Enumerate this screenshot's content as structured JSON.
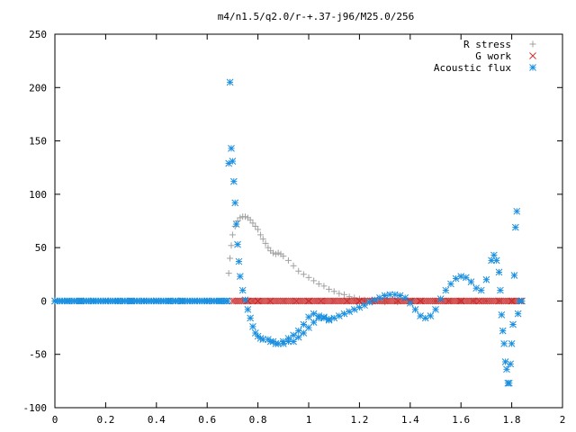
{
  "chart_data": {
    "type": "scatter",
    "title": "m4/n1.5/q2.0/r-+.37-j96/M25.0/256",
    "xlabel": "",
    "ylabel": "",
    "xlim": [
      0,
      2
    ],
    "ylim": [
      -100,
      250
    ],
    "xticks": [
      "0",
      "0.2",
      "0.4",
      "0.6",
      "0.8",
      "1",
      "1.2",
      "1.4",
      "1.6",
      "1.8",
      "2"
    ],
    "yticks": [
      "250",
      "200",
      "150",
      "100",
      "50",
      "0",
      "-50",
      "-100"
    ],
    "legend_position": "top-right",
    "grid": false,
    "series": [
      {
        "name": "R stress",
        "marker": "plus",
        "color": "#a0a0a0",
        "points": [
          [
            0.0,
            0
          ],
          [
            0.1,
            0
          ],
          [
            0.2,
            0
          ],
          [
            0.3,
            0
          ],
          [
            0.4,
            0
          ],
          [
            0.5,
            0
          ],
          [
            0.6,
            0
          ],
          [
            0.68,
            0
          ],
          [
            0.685,
            26
          ],
          [
            0.69,
            40
          ],
          [
            0.695,
            52
          ],
          [
            0.7,
            62
          ],
          [
            0.71,
            70
          ],
          [
            0.72,
            75
          ],
          [
            0.73,
            78
          ],
          [
            0.74,
            79
          ],
          [
            0.75,
            79
          ],
          [
            0.76,
            78
          ],
          [
            0.77,
            76
          ],
          [
            0.78,
            73
          ],
          [
            0.79,
            70
          ],
          [
            0.8,
            67
          ],
          [
            0.81,
            62
          ],
          [
            0.82,
            58
          ],
          [
            0.83,
            54
          ],
          [
            0.84,
            50
          ],
          [
            0.85,
            47
          ],
          [
            0.86,
            45
          ],
          [
            0.87,
            44
          ],
          [
            0.88,
            45
          ],
          [
            0.89,
            44
          ],
          [
            0.9,
            42
          ],
          [
            0.92,
            38
          ],
          [
            0.94,
            33
          ],
          [
            0.96,
            28
          ],
          [
            0.98,
            25
          ],
          [
            1.0,
            22
          ],
          [
            1.02,
            19
          ],
          [
            1.04,
            16
          ],
          [
            1.06,
            14
          ],
          [
            1.08,
            11
          ],
          [
            1.1,
            9
          ],
          [
            1.12,
            7
          ],
          [
            1.14,
            6
          ],
          [
            1.16,
            4
          ],
          [
            1.18,
            3
          ],
          [
            1.2,
            2
          ],
          [
            1.22,
            1
          ],
          [
            1.25,
            0
          ],
          [
            1.3,
            -1
          ],
          [
            1.35,
            -1
          ],
          [
            1.4,
            0
          ],
          [
            1.45,
            0
          ],
          [
            1.5,
            0
          ],
          [
            1.55,
            0
          ],
          [
            1.6,
            0
          ],
          [
            1.65,
            0
          ],
          [
            1.7,
            0
          ],
          [
            1.75,
            0
          ],
          [
            1.8,
            0
          ],
          [
            1.84,
            0
          ]
        ]
      },
      {
        "name": "G work",
        "marker": "cross",
        "color": "#cc3333",
        "points": [
          [
            0.0,
            0
          ],
          [
            0.1,
            0
          ],
          [
            0.2,
            0
          ],
          [
            0.3,
            0
          ],
          [
            0.4,
            0
          ],
          [
            0.5,
            0
          ],
          [
            0.6,
            0
          ],
          [
            0.7,
            0
          ],
          [
            0.76,
            0
          ],
          [
            0.78,
            0
          ],
          [
            0.8,
            0
          ],
          [
            0.85,
            0
          ],
          [
            0.9,
            0
          ],
          [
            0.95,
            0
          ],
          [
            1.0,
            0
          ],
          [
            1.05,
            0
          ],
          [
            1.1,
            0
          ],
          [
            1.15,
            0
          ],
          [
            1.2,
            0
          ],
          [
            1.22,
            0
          ],
          [
            1.25,
            0
          ],
          [
            1.3,
            0
          ],
          [
            1.35,
            0
          ],
          [
            1.4,
            0
          ],
          [
            1.44,
            0
          ],
          [
            1.5,
            0
          ],
          [
            1.55,
            0
          ],
          [
            1.6,
            0
          ],
          [
            1.65,
            0
          ],
          [
            1.67,
            0
          ],
          [
            1.7,
            0
          ],
          [
            1.75,
            0
          ],
          [
            1.8,
            0
          ],
          [
            1.84,
            0
          ]
        ]
      },
      {
        "name": "Acoustic flux",
        "marker": "star",
        "color": "#1a8fe0",
        "points": [
          [
            0.0,
            0
          ],
          [
            0.05,
            0
          ],
          [
            0.1,
            0
          ],
          [
            0.15,
            0
          ],
          [
            0.2,
            0
          ],
          [
            0.25,
            0
          ],
          [
            0.3,
            0
          ],
          [
            0.35,
            0
          ],
          [
            0.4,
            0
          ],
          [
            0.45,
            0
          ],
          [
            0.5,
            0
          ],
          [
            0.55,
            0
          ],
          [
            0.6,
            0
          ],
          [
            0.65,
            0
          ],
          [
            0.68,
            0
          ],
          [
            0.685,
            129
          ],
          [
            0.69,
            205
          ],
          [
            0.695,
            143
          ],
          [
            0.7,
            131
          ],
          [
            0.705,
            112
          ],
          [
            0.71,
            92
          ],
          [
            0.715,
            72
          ],
          [
            0.72,
            53
          ],
          [
            0.725,
            37
          ],
          [
            0.73,
            23
          ],
          [
            0.74,
            10
          ],
          [
            0.75,
            1
          ],
          [
            0.76,
            -8
          ],
          [
            0.77,
            -16
          ],
          [
            0.78,
            -24
          ],
          [
            0.79,
            -30
          ],
          [
            0.8,
            -33
          ],
          [
            0.81,
            -35
          ],
          [
            0.82,
            -36
          ],
          [
            0.84,
            -36
          ],
          [
            0.86,
            -38
          ],
          [
            0.88,
            -40
          ],
          [
            0.9,
            -38
          ],
          [
            0.92,
            -35
          ],
          [
            0.94,
            -32
          ],
          [
            0.96,
            -28
          ],
          [
            0.98,
            -22
          ],
          [
            1.0,
            -15
          ],
          [
            1.02,
            -12
          ],
          [
            1.04,
            -14
          ],
          [
            1.06,
            -16
          ],
          [
            1.08,
            -18
          ],
          [
            1.1,
            -16
          ],
          [
            1.12,
            -14
          ],
          [
            1.14,
            -12
          ],
          [
            1.16,
            -10
          ],
          [
            1.18,
            -8
          ],
          [
            1.2,
            -6
          ],
          [
            1.22,
            -4
          ],
          [
            1.24,
            -1
          ],
          [
            1.26,
            1
          ],
          [
            1.28,
            3
          ],
          [
            1.3,
            5
          ],
          [
            1.32,
            6
          ],
          [
            1.34,
            6
          ],
          [
            1.36,
            5
          ],
          [
            1.38,
            3
          ],
          [
            1.4,
            -2
          ],
          [
            1.42,
            -8
          ],
          [
            1.44,
            -14
          ],
          [
            1.46,
            -16
          ],
          [
            1.48,
            -14
          ],
          [
            1.5,
            -8
          ],
          [
            1.52,
            2
          ],
          [
            1.54,
            10
          ],
          [
            1.56,
            16
          ],
          [
            1.58,
            21
          ],
          [
            1.6,
            23
          ],
          [
            1.62,
            22
          ],
          [
            1.64,
            18
          ],
          [
            1.66,
            12
          ],
          [
            1.68,
            10
          ],
          [
            1.7,
            20
          ],
          [
            1.72,
            38
          ],
          [
            1.73,
            43
          ],
          [
            1.74,
            38
          ],
          [
            1.75,
            27
          ],
          [
            1.755,
            10
          ],
          [
            1.76,
            -13
          ],
          [
            1.765,
            -28
          ],
          [
            1.77,
            -40
          ],
          [
            1.775,
            -57
          ],
          [
            1.78,
            -64
          ],
          [
            1.785,
            -77
          ],
          [
            1.79,
            -77
          ],
          [
            1.795,
            -59
          ],
          [
            1.8,
            -40
          ],
          [
            1.805,
            -22
          ],
          [
            1.81,
            24
          ],
          [
            1.815,
            69
          ],
          [
            1.82,
            84
          ],
          [
            1.825,
            -12
          ],
          [
            1.83,
            0
          ],
          [
            1.84,
            0
          ]
        ],
        "cluster_near_zero": [
          [
            0.85,
            -38
          ],
          [
            0.87,
            -40
          ],
          [
            0.9,
            -40
          ],
          [
            0.92,
            -38
          ],
          [
            0.94,
            -38
          ],
          [
            0.96,
            -34
          ],
          [
            0.98,
            -30
          ],
          [
            1.0,
            -25
          ],
          [
            1.02,
            -20
          ],
          [
            1.04,
            -16
          ],
          [
            1.06,
            -15
          ],
          [
            1.08,
            -17
          ]
        ]
      }
    ]
  }
}
